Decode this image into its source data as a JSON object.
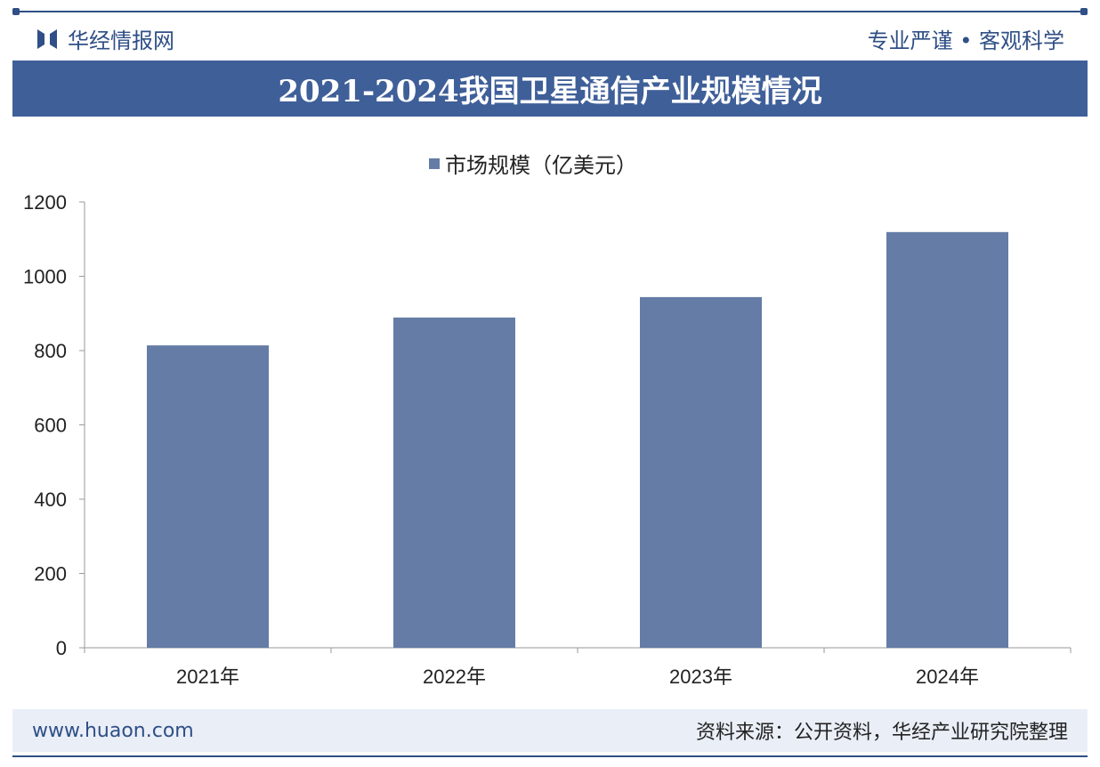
{
  "header": {
    "brand": "华经情报网",
    "slogan": "专业严谨 • 客观科学"
  },
  "chart_data": {
    "type": "bar",
    "title": "2021-2024我国卫星通信产业规模情况",
    "categories": [
      "2021年",
      "2022年",
      "2023年",
      "2024年"
    ],
    "series": [
      {
        "name": "市场规模（亿美元）",
        "values": [
          814,
          889,
          944,
          1119
        ],
        "color": "#647ca6"
      }
    ],
    "ylim": [
      0,
      1200
    ],
    "yticks": [
      0,
      200,
      400,
      600,
      800,
      1000,
      1200
    ],
    "grid": false,
    "legend": "top-center"
  },
  "footer": {
    "website": "www.huaon.com",
    "source": "资料来源：公开资料，华经产业研究院整理"
  }
}
